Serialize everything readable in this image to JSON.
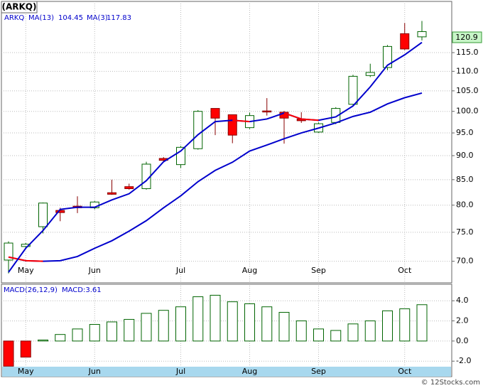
{
  "chart_data": [
    {
      "type": "candlestick",
      "title": "(ARKQ)",
      "symbol": "ARKQ",
      "categories": [
        null,
        "May",
        null,
        null,
        null,
        "Jun",
        null,
        null,
        null,
        null,
        "Jul",
        null,
        null,
        null,
        "Aug",
        null,
        null,
        null,
        "Sep",
        null,
        null,
        null,
        null,
        "Oct",
        null
      ],
      "open": [
        70.2,
        72.5,
        76.0,
        79.0,
        79.8,
        79.5,
        82.4,
        83.6,
        83.2,
        89.4,
        88.1,
        91.5,
        100.7,
        99.2,
        96.2,
        100.1,
        99.8,
        98.2,
        95.2,
        97.4,
        101.7,
        108.9,
        111.0,
        120.3,
        119.4
      ],
      "high": [
        73.4,
        73.1,
        80.5,
        79.5,
        81.7,
        80.8,
        85.0,
        84.2,
        88.7,
        89.7,
        92.1,
        100.3,
        100.7,
        99.2,
        99.7,
        103.2,
        100.1,
        99.8,
        97.4,
        101.0,
        109.1,
        112.0,
        117.1,
        123.4,
        124.0
      ],
      "low": [
        68.0,
        72.2,
        74.8,
        77.0,
        78.5,
        79.2,
        82.0,
        83.0,
        83.0,
        88.6,
        87.4,
        91.3,
        94.5,
        92.7,
        95.9,
        99.0,
        92.6,
        97.3,
        95.0,
        97.0,
        101.5,
        108.5,
        110.3,
        115.7,
        118.4
      ],
      "close": [
        73.1,
        72.9,
        80.4,
        78.6,
        79.5,
        80.6,
        82.1,
        83.2,
        88.2,
        89.0,
        91.8,
        100.0,
        98.4,
        94.5,
        99.0,
        99.9,
        98.4,
        97.8,
        97.1,
        100.7,
        108.7,
        109.7,
        116.7,
        116.0,
        120.9
      ],
      "up_color": "#006400",
      "down_color": "#ff0000",
      "yscale": "log",
      "ylim": [
        66.5,
        129.9
      ],
      "yticks": [
        {
          "value": 70,
          "label": "70.0"
        },
        {
          "value": 75,
          "label": "75.0"
        },
        {
          "value": 80,
          "label": "80.0"
        },
        {
          "value": 85,
          "label": "85.0"
        },
        {
          "value": 90,
          "label": "90.0"
        },
        {
          "value": 95,
          "label": "95.0"
        },
        {
          "value": 100,
          "label": "100.0"
        },
        {
          "value": 105,
          "label": "105.0"
        },
        {
          "value": 110,
          "label": "110.0"
        },
        {
          "value": 115,
          "label": "115.0"
        }
      ],
      "grid": true,
      "last_price": 120.9,
      "series": [
        {
          "name": "MA(13)",
          "color": "#0000cc",
          "down_color": "#ff0000",
          "current": 104.45,
          "values": [
            70.7,
            70.1,
            70.0,
            70.1,
            70.8,
            72.2,
            73.5,
            75.2,
            77.1,
            79.5,
            81.8,
            84.6,
            86.9,
            88.6,
            91.0,
            92.3,
            93.7,
            95.0,
            96.1,
            97.3,
            98.8,
            99.8,
            101.8,
            103.3,
            104.45
          ]
        },
        {
          "name": "MA(3)",
          "color": "#0000cc",
          "down_color": "#ff0000",
          "current": 117.83,
          "values": [
            68.2,
            72.2,
            75.3,
            79.2,
            79.6,
            79.6,
            81.0,
            82.2,
            84.8,
            88.7,
            91.0,
            94.6,
            97.6,
            97.9,
            97.6,
            98.2,
            99.6,
            98.2,
            97.9,
            98.7,
            101.3,
            106.0,
            111.6,
            114.4,
            117.83
          ]
        }
      ]
    },
    {
      "type": "bar",
      "title": "MACD(26,12,9)",
      "label": "MACD:3.61",
      "categories": [
        null,
        "May",
        null,
        null,
        null,
        "Jun",
        null,
        null,
        null,
        null,
        "Jul",
        null,
        null,
        null,
        "Aug",
        null,
        null,
        null,
        "Sep",
        null,
        null,
        null,
        null,
        "Oct",
        null
      ],
      "values": [
        -2.5,
        -1.6,
        0.1,
        0.65,
        1.2,
        1.65,
        1.9,
        2.15,
        2.75,
        3.05,
        3.4,
        4.4,
        4.55,
        3.9,
        3.7,
        3.4,
        2.85,
        2.0,
        1.2,
        1.05,
        1.7,
        2.0,
        3.0,
        3.2,
        3.61
      ],
      "up_color": "#006400",
      "down_color": "#ff0000",
      "ylim": [
        -2.55,
        5.5
      ],
      "yticks": [
        {
          "value": 4,
          "label": "4.0"
        },
        {
          "value": 2,
          "label": "2.0"
        },
        {
          "value": 0,
          "label": "0.0"
        },
        {
          "value": -2,
          "label": "-2.0"
        }
      ],
      "grid": true
    }
  ],
  "footer": "© 12Stocks.com"
}
